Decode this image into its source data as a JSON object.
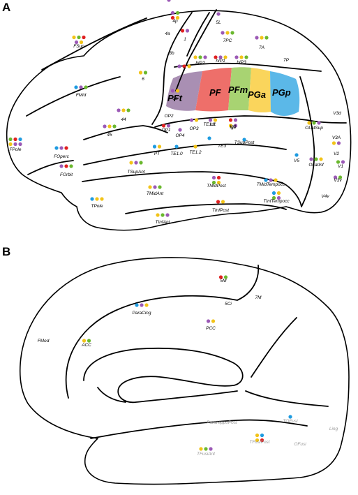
{
  "panels": [
    {
      "id": "A",
      "label": "A"
    },
    {
      "id": "B",
      "label": "B"
    }
  ],
  "colors": {
    "purple": "#9b59b6",
    "red": "#e02020",
    "green": "#6ab82e",
    "yellow": "#f2c318",
    "blue": "#1e9be0",
    "PFt": "#a98fb3",
    "PF": "#ee6f6a",
    "PFm": "#a8d372",
    "PGa": "#fad55c",
    "PGp": "#5bb8e8"
  },
  "ipl_regions": [
    {
      "key": "PFt",
      "label": "PFt"
    },
    {
      "key": "PF",
      "label": "PF"
    },
    {
      "key": "PFm",
      "label": "PFm"
    },
    {
      "key": "PGa",
      "label": "PGa"
    },
    {
      "key": "PGp",
      "label": "PGp"
    }
  ],
  "lateral_regions": [
    {
      "label": "FSup",
      "dots": [
        "yellow",
        "green",
        "red",
        "purple",
        "yellow"
      ]
    },
    {
      "label": "FMid",
      "dots": [
        "blue",
        "purple",
        "green"
      ]
    },
    {
      "label": "4p",
      "dots": [
        "purple",
        "green",
        "red",
        "yellow"
      ]
    },
    {
      "label": "4a",
      "dots": []
    },
    {
      "label": "1",
      "dots": [
        "red",
        "purple"
      ]
    },
    {
      "label": "5L",
      "dots": [
        "purple"
      ]
    },
    {
      "label": "7PC",
      "dots": [
        "purple",
        "yellow",
        "green"
      ]
    },
    {
      "label": "7A",
      "dots": [
        "purple",
        "yellow",
        "green"
      ]
    },
    {
      "label": "3b",
      "dots": []
    },
    {
      "label": "hIP2",
      "dots": [
        "yellow",
        "green",
        "purple"
      ]
    },
    {
      "label": "hIP1",
      "dots": [
        "red",
        "purple",
        "yellow"
      ]
    },
    {
      "label": "hIP3",
      "dots": [
        "purple",
        "yellow",
        "green"
      ]
    },
    {
      "label": "7P",
      "dots": []
    },
    {
      "label": "2",
      "dots": [
        "purple",
        "red",
        "yellow"
      ]
    },
    {
      "label": "6",
      "dots": [
        "yellow",
        "green"
      ]
    },
    {
      "label": "3a",
      "dots": [
        "purple",
        "yellow"
      ]
    },
    {
      "label": "44",
      "dots": [
        "purple",
        "yellow",
        "green"
      ]
    },
    {
      "label": "45",
      "dots": [
        "purple",
        "yellow",
        "green"
      ]
    },
    {
      "label": "FPole",
      "dots": [
        "green",
        "red",
        "blue",
        "yellow",
        "purple",
        "purple"
      ]
    },
    {
      "label": "FOperc",
      "dots": [
        "blue",
        "purple",
        "red"
      ]
    },
    {
      "label": "FOrbit",
      "dots": [
        "purple",
        "red",
        "green"
      ]
    },
    {
      "label": "OP2",
      "dots": [
        "purple"
      ]
    },
    {
      "label": "OP1",
      "dots": [
        "red",
        "purple"
      ]
    },
    {
      "label": "OP4",
      "dots": [
        "purple"
      ]
    },
    {
      "label": "OP3",
      "dots": [
        "purple",
        "yellow"
      ]
    },
    {
      "label": "Id1",
      "dots": [
        "purple",
        "yellow"
      ]
    },
    {
      "label": "Ig1",
      "dots": [
        "red",
        "purple"
      ]
    },
    {
      "label": "Ig2",
      "dots": [
        "yellow",
        "purple"
      ]
    },
    {
      "label": "TE1.1",
      "dots": [
        "blue"
      ]
    },
    {
      "label": "TSupPost",
      "dots": [
        "blue"
      ]
    },
    {
      "label": "TE3",
      "dots": []
    },
    {
      "label": "PT",
      "dots": [
        "blue",
        "yellow"
      ]
    },
    {
      "label": "TE1.0",
      "dots": [
        "blue"
      ]
    },
    {
      "label": "TE1.2",
      "dots": [
        "yellow"
      ]
    },
    {
      "label": "TSupAnt",
      "dots": [
        "yellow",
        "purple",
        "green"
      ]
    },
    {
      "label": "OLatSup",
      "dots": [
        "yellow",
        "green",
        "purple"
      ]
    },
    {
      "label": "V3d",
      "dots": []
    },
    {
      "label": "V3A",
      "dots": []
    },
    {
      "label": "V2",
      "dots": [
        "yellow",
        "purple"
      ]
    },
    {
      "label": "OLatInf",
      "dots": [
        "purple",
        "green",
        "yellow"
      ]
    },
    {
      "label": "V1",
      "dots": [
        "green",
        "purple"
      ]
    },
    {
      "label": "V3v",
      "dots": [
        "purple",
        "green"
      ]
    },
    {
      "label": "V5",
      "dots": [
        "blue"
      ]
    },
    {
      "label": "TMidTempocc",
      "dots": [
        "blue",
        "purple",
        "yellow"
      ]
    },
    {
      "label": "TMidAnt",
      "dots": [
        "yellow",
        "purple",
        "green"
      ]
    },
    {
      "label": "TMidPost",
      "dots": [
        "purple",
        "red",
        "green",
        "yellow"
      ]
    },
    {
      "label": "TInfTempocc",
      "dots": [
        "blue",
        "yellow",
        "green",
        "purple"
      ]
    },
    {
      "label": "V4v",
      "dots": []
    },
    {
      "label": "TPole",
      "dots": [
        "blue",
        "yellow",
        "yellow"
      ]
    },
    {
      "label": "TInfPost",
      "dots": [
        "red",
        "yellow"
      ]
    },
    {
      "label": "TInfAnt",
      "dots": [
        "yellow",
        "green",
        "purple"
      ]
    }
  ],
  "medial_regions": [
    {
      "label": "5M",
      "dots": [
        "red",
        "green"
      ],
      "muted": false
    },
    {
      "label": "7M",
      "dots": [],
      "muted": false
    },
    {
      "label": "5Ci",
      "dots": [],
      "muted": false
    },
    {
      "label": "ParaCing",
      "dots": [
        "blue",
        "purple",
        "yellow"
      ],
      "muted": false
    },
    {
      "label": "PCC",
      "dots": [
        "purple",
        "yellow"
      ],
      "muted": false
    },
    {
      "label": "FMed",
      "dots": [],
      "muted": false
    },
    {
      "label": "ACC",
      "dots": [
        "yellow",
        "green"
      ],
      "muted": false
    },
    {
      "label": "ParaHippoPost",
      "dots": [],
      "muted": true
    },
    {
      "label": "TOFusi",
      "dots": [
        "blue"
      ],
      "muted": true
    },
    {
      "label": "TFusiPost",
      "dots": [
        "yellow",
        "blue",
        "yellow",
        "red"
      ],
      "muted": true
    },
    {
      "label": "OFusi",
      "dots": [],
      "muted": true
    },
    {
      "label": "Ling",
      "dots": [],
      "muted": true
    },
    {
      "label": "TFusiAnt",
      "dots": [
        "yellow",
        "green",
        "purple"
      ],
      "muted": true
    }
  ]
}
